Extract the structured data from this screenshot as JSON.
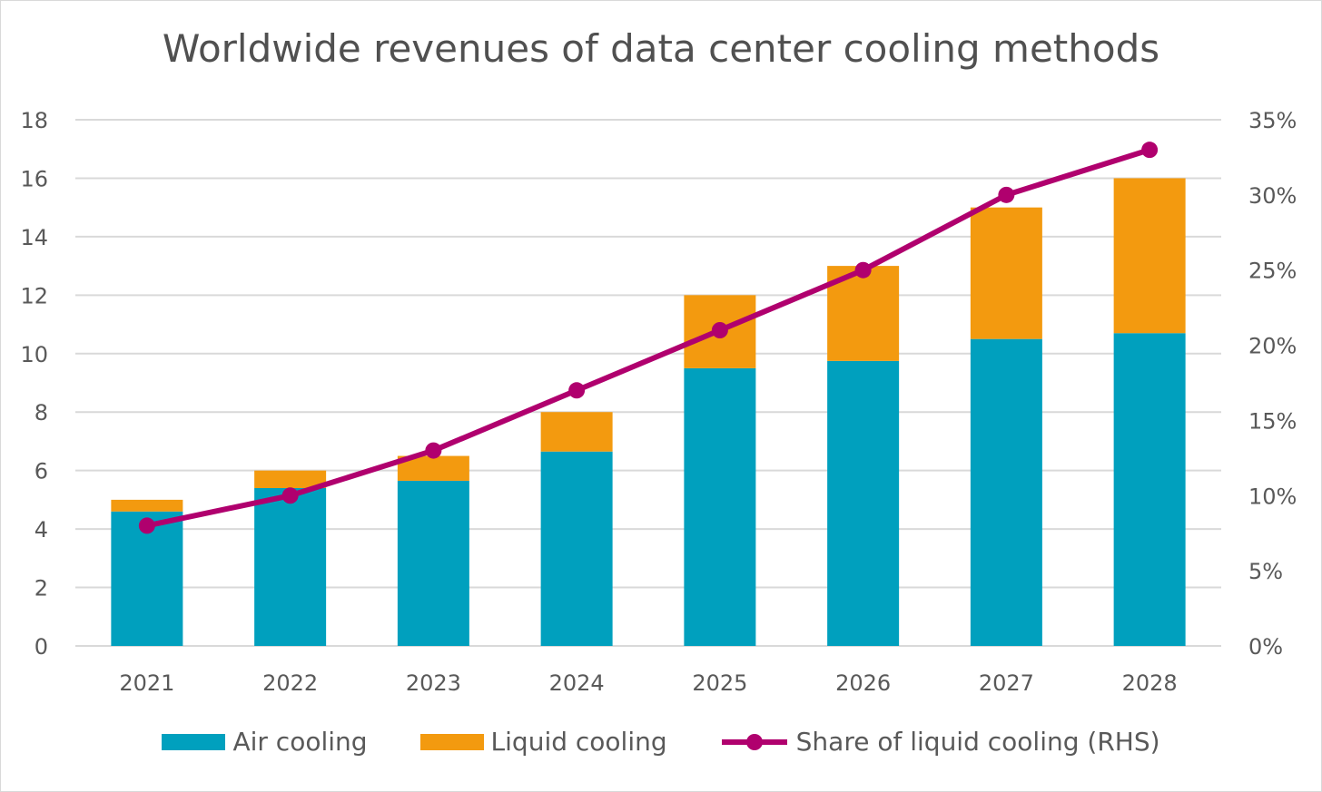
{
  "chart_data": {
    "type": "bar",
    "stacked": true,
    "title": "Worldwide revenues of data center cooling methods",
    "categories": [
      "2021",
      "2022",
      "2023",
      "2024",
      "2025",
      "2026",
      "2027",
      "2028"
    ],
    "series": [
      {
        "name": "Air cooling",
        "type": "bar",
        "axis": "left",
        "color": "#00A0BE",
        "values": [
          4.6,
          5.4,
          5.65,
          6.65,
          9.5,
          9.75,
          10.5,
          10.7
        ]
      },
      {
        "name": "Liquid cooling",
        "type": "bar",
        "axis": "left",
        "color": "#F39A0F",
        "values": [
          0.4,
          0.6,
          0.85,
          1.35,
          2.5,
          3.25,
          4.5,
          5.3
        ]
      },
      {
        "name": "Share of liquid cooling (RHS)",
        "type": "line",
        "axis": "right",
        "color": "#B0006E",
        "values": [
          0.08,
          0.1,
          0.13,
          0.17,
          0.21,
          0.25,
          0.3,
          0.33
        ]
      }
    ],
    "ylim": [
      0,
      18
    ],
    "yticks": [
      "0",
      "2",
      "4",
      "6",
      "8",
      "10",
      "12",
      "14",
      "16",
      "18"
    ],
    "y2lim": [
      0,
      0.35
    ],
    "y2ticks": [
      "0%",
      "5%",
      "10%",
      "15%",
      "20%",
      "25%",
      "30%",
      "35%"
    ],
    "grid": true,
    "legend": "bottom"
  }
}
